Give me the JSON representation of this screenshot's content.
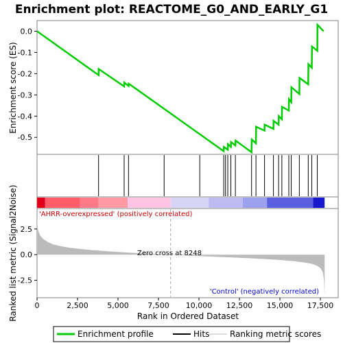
{
  "chart_data": {
    "type": "line",
    "title": "Enrichment plot: REACTOME_G0_AND_EARLY_G1",
    "es_panel": {
      "ylabel": "Enrichment score (ES)",
      "yticks": [
        0.0,
        -0.1,
        -0.2,
        -0.3,
        -0.4,
        -0.5
      ],
      "ytick_labels": [
        "0.0",
        "-0.1",
        "-0.2",
        "-0.3",
        "-0.4",
        "-0.5"
      ],
      "ylim": [
        -0.58,
        0.05
      ],
      "series": [
        {
          "color": "#00cc00",
          "x": [
            0,
            3800,
            3810,
            5380,
            5390,
            5650,
            5660,
            11530,
            11540,
            11780,
            11790,
            11970,
            11980,
            12250,
            12260,
            13250,
            13260,
            13520,
            13530,
            14050,
            14060,
            14600,
            14610,
            14920,
            14930,
            15120,
            15130,
            15550,
            15560,
            15700,
            15710,
            16200,
            16210,
            16750,
            16760,
            16970,
            16980,
            17310,
            17320,
            17700
          ],
          "y": [
            0.0,
            -0.207,
            -0.178,
            -0.26,
            -0.242,
            -0.258,
            -0.247,
            -0.565,
            -0.545,
            -0.558,
            -0.532,
            -0.545,
            -0.522,
            -0.538,
            -0.515,
            -0.57,
            -0.51,
            -0.528,
            -0.45,
            -0.468,
            -0.44,
            -0.46,
            -0.422,
            -0.44,
            -0.4,
            -0.415,
            -0.356,
            -0.374,
            -0.32,
            -0.334,
            -0.264,
            -0.296,
            -0.22,
            -0.25,
            -0.155,
            -0.172,
            -0.072,
            -0.092,
            0.03,
            0.0
          ]
        }
      ]
    },
    "hits": [
      3800,
      5380,
      5650,
      7850,
      10050,
      11530,
      11640,
      11780,
      11970,
      12250,
      13250,
      13520,
      14050,
      14600,
      14920,
      15120,
      15550,
      15700,
      16200,
      16750,
      16970,
      17310
    ],
    "rank_panel": {
      "ylabel": "Ranked list metric (Signal2Noise)",
      "yticks": [
        2.5,
        0.0,
        -2.5
      ],
      "ytick_labels": [
        "2.5",
        "0.0",
        "-2.5"
      ],
      "ylim": [
        -4.2,
        4.5
      ],
      "metric_x": [
        0,
        40,
        100,
        200,
        400,
        700,
        1000,
        1500,
        2000,
        2700,
        3500,
        4500,
        5500,
        6500,
        7500,
        8248,
        9000,
        10000,
        11000,
        12000,
        13000,
        14000,
        15000,
        15800,
        16500,
        17000,
        17300,
        17500,
        17650,
        17720,
        17760
      ],
      "metric_y": [
        3.8,
        2.6,
        2.2,
        1.85,
        1.5,
        1.2,
        1.0,
        0.82,
        0.68,
        0.55,
        0.43,
        0.32,
        0.22,
        0.13,
        0.05,
        0.0,
        -0.06,
        -0.13,
        -0.2,
        -0.27,
        -0.34,
        -0.42,
        -0.52,
        -0.62,
        -0.76,
        -0.9,
        -1.08,
        -1.3,
        -1.7,
        -2.4,
        -4.1
      ],
      "zero_cross_label": "Zero cross at 8248",
      "zero_cross": 8248,
      "pos_label": "'AHRR-overexpressed' (positively correlated)",
      "neg_label": "'Control' (negatively correlated)"
    },
    "xlabel": "Rank in Ordered Dataset",
    "xticks": [
      0,
      2500,
      5000,
      7500,
      10000,
      12500,
      15000,
      17500
    ],
    "xtick_labels": [
      "0",
      "2,500",
      "5,000",
      "7,500",
      "10,000",
      "12,500",
      "15,000",
      "17,500"
    ],
    "xlim": [
      0,
      18600
    ],
    "n_genes": 17760,
    "heatmap_bands": [
      {
        "x0": 0,
        "x1": 500,
        "color": "#e0001a"
      },
      {
        "x0": 500,
        "x1": 2650,
        "color": "#ff5d6a"
      },
      {
        "x0": 2650,
        "x1": 3800,
        "color": "#ff7a86"
      },
      {
        "x0": 3800,
        "x1": 5600,
        "color": "#ff9aa4"
      },
      {
        "x0": 5600,
        "x1": 8250,
        "color": "#ffc4e4"
      },
      {
        "x0": 8250,
        "x1": 10600,
        "color": "#d8d4f6"
      },
      {
        "x0": 10600,
        "x1": 12700,
        "color": "#bcbcf2"
      },
      {
        "x0": 12700,
        "x1": 14200,
        "color": "#9da0ec"
      },
      {
        "x0": 14200,
        "x1": 17050,
        "color": "#5a5fe0"
      },
      {
        "x0": 17050,
        "x1": 17760,
        "color": "#1818cc"
      }
    ],
    "legend": [
      {
        "label": "Enrichment profile",
        "color": "#00cc00"
      },
      {
        "label": "Hits",
        "color": "#000000"
      },
      {
        "label": "Ranking metric scores",
        "color": "#bbbbbb"
      }
    ],
    "colors": {
      "es_line": "#00cc00",
      "metric_fill": "#bbbbbb",
      "pos_label": "#cc0000",
      "neg_label": "#0000cc",
      "zero_line": "#aaaaaa"
    }
  }
}
